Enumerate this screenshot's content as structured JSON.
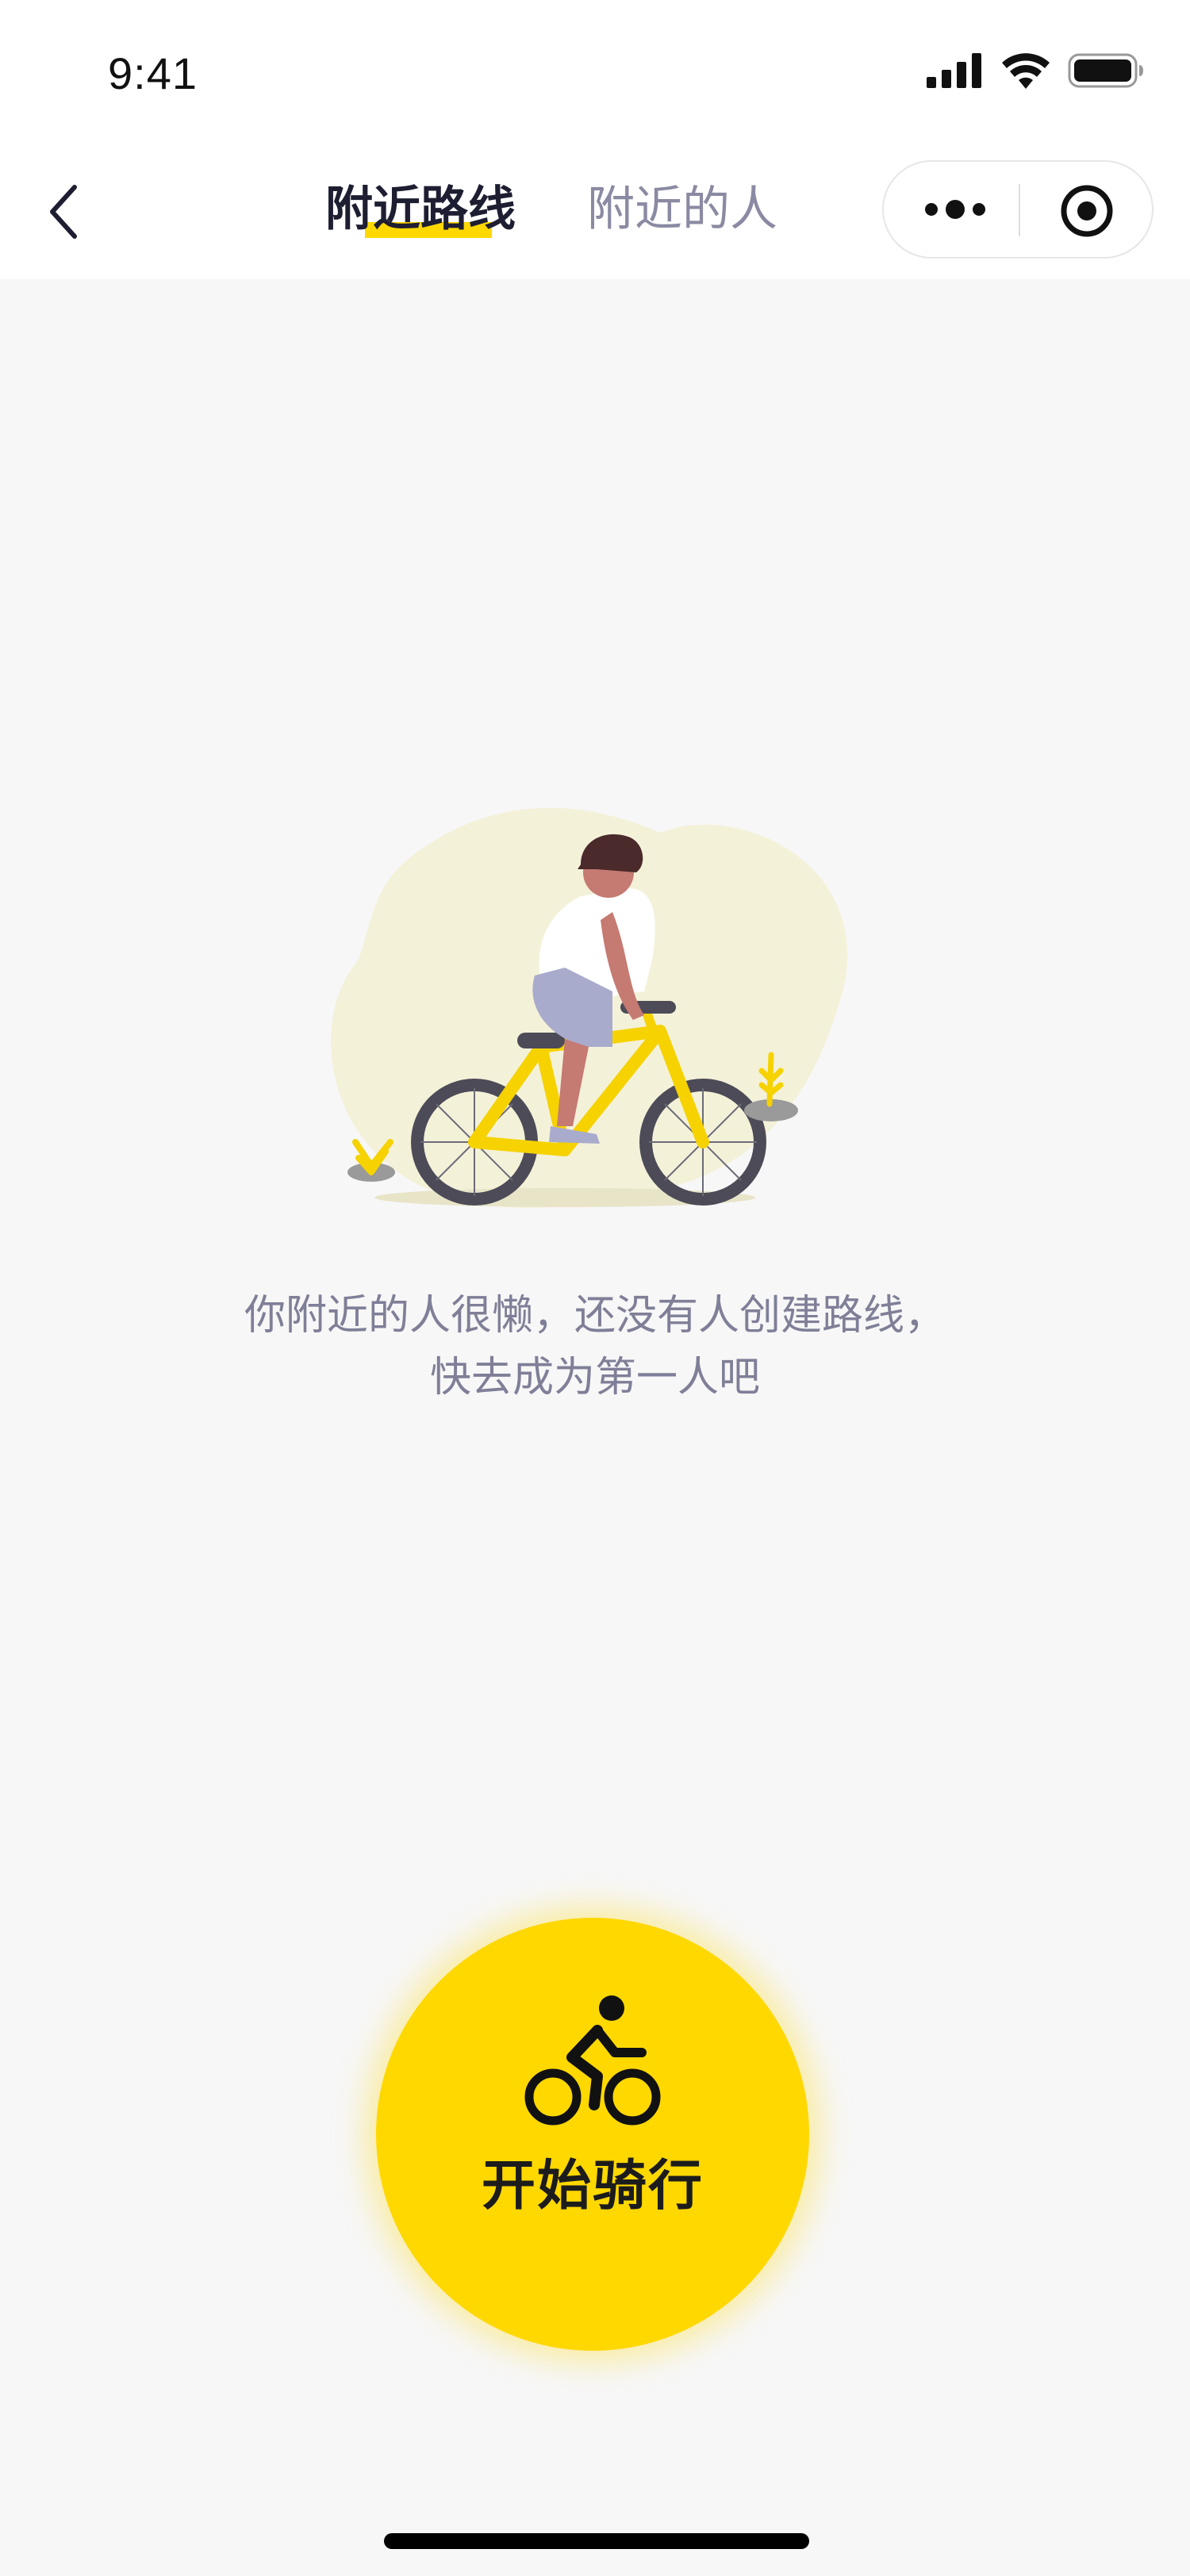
{
  "status_bar": {
    "time": "9:41",
    "icons": [
      "signal-icon",
      "wifi-icon",
      "battery-icon"
    ]
  },
  "nav": {
    "back_icon": "chevron-left-icon",
    "tabs": [
      {
        "label": "附近路线",
        "active": true
      },
      {
        "label": "附近的人",
        "active": false
      }
    ],
    "capsule_icons": [
      "more-icon",
      "target-icon"
    ]
  },
  "empty_state": {
    "message": "你附近的人很懒，还没有人创建路线，快去成为第一人吧"
  },
  "start_button": {
    "label": "开始骑行",
    "icon": "bicycle-icon"
  },
  "colors": {
    "accent": "#FFD800",
    "active_tab": "#1E1E32",
    "inactive_tab": "#8A8AA3",
    "background": "#F7F7F7"
  }
}
